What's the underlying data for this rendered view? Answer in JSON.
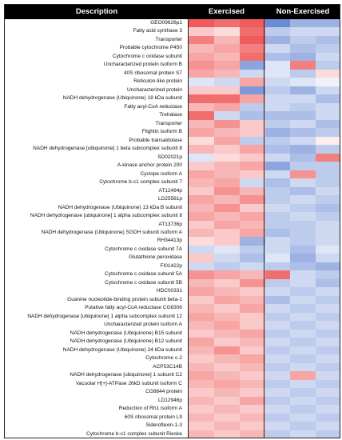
{
  "chart_data": {
    "type": "heatmap",
    "columns": [
      "Description",
      "Exercised",
      "Non-Exercised"
    ],
    "rows": [
      "GEO09626p1",
      "Fatty acid synthase 3",
      "Transporter",
      "Probable cytochrome P450",
      "Cytochrome c oxidase subunit",
      "Uncharacterized protein isoform B",
      "40S ribosomal protein S7",
      "Reticulon-like protein",
      "Uncharacterized protein",
      "NADH dehydrogenase (Ubiquinone) 18 kDa subunit",
      "Fatty acyl-CoA reductase",
      "Trehalase",
      "Transporter",
      "Flightin isoform B",
      "Probable transaldolase",
      "NADH dehydrogenase [ubiquinone] 1 beta subcomplex subunit 8",
      "SD02021p",
      "A-kinase anchor protein 200",
      "Cyclope isoform A",
      "Cytochrome b-c1 complex subunit 7",
      "AT12494p",
      "LD25561p",
      "NADH dehydrogenase (Ubiquinone) 13 kDa B subunit",
      "NADH dehydrogenase [ubiquinone] 1 alpha subcomplex subunit 8",
      "AT13736p",
      "NADH dehydrogenase (Ubiquinone) SGDH subunit isoform A",
      "RH34413p",
      "Cytochrome c oxidase subunit 7A",
      "Glutathione peroxidase",
      "FI01422p",
      "Cytochrome c oxidase subunit 5A",
      "Cytochrome c oxidase subunit 5B",
      "HDC00331",
      "Guanine nucleotide-binding protein subunit beta-1",
      "Putative fatty acyl-CoA reductase CG8306",
      "NADH dehydrogenase [ubiquinone] 1 alpha subcomplex subunit 12",
      "Uncharacterized protein isoform A",
      "NADH dehydrogenase (Ubiquinone) B15 subunit",
      "NADH dehydrogenase (Ubiquinone) B12 subunit",
      "NADH dehydrogenase (Ubiquinone) 24 kDa subunit",
      "Cytochrome c-2",
      "ACP53C14B",
      "NADH dehydrogenase [ubiquinone] 1 subunit C2",
      "Vacuolar H[+]-ATPase 26kD subunit isoform C",
      "CG8844 protein",
      "LD12946p",
      "Reduction of Rh1 isoform A",
      "60S ribosomal protein L9",
      "Sideroflexin-1-3",
      "Cytochrome b-c1 complex subunit Rieske"
    ],
    "n_exercised_cols": 3,
    "n_nonexercised_cols": 3,
    "color_scale": {
      "low": "#5b7fd0",
      "mid": "#ffffff",
      "high": "#ee4a4a"
    },
    "values": [
      [
        0.9,
        0.8,
        0.9,
        -0.9,
        -0.6,
        -0.6
      ],
      [
        0.3,
        0.2,
        0.8,
        -0.4,
        -0.3,
        -0.3
      ],
      [
        0.7,
        0.4,
        0.9,
        -0.6,
        -0.4,
        -0.5
      ],
      [
        0.4,
        0.5,
        0.7,
        -0.3,
        -0.5,
        -0.4
      ],
      [
        0.5,
        0.4,
        0.8,
        -0.5,
        -0.6,
        -0.3
      ],
      [
        0.6,
        0.5,
        -0.7,
        -0.2,
        0.7,
        -0.4
      ],
      [
        0.5,
        0.4,
        -0.3,
        -0.2,
        -0.4,
        0.2
      ],
      [
        -0.2,
        -0.3,
        0.5,
        -0.3,
        -0.2,
        -0.1
      ],
      [
        0.3,
        0.3,
        -0.8,
        -0.4,
        -0.6,
        -0.3
      ],
      [
        0.8,
        0.8,
        0.5,
        -0.3,
        -0.3,
        -0.5
      ],
      [
        0.4,
        0.5,
        -0.4,
        -0.3,
        -0.4,
        -0.3
      ],
      [
        0.8,
        -0.3,
        -0.5,
        -0.5,
        -0.5,
        -0.3
      ],
      [
        0.4,
        0.6,
        0.3,
        -0.4,
        -0.3,
        -0.5
      ],
      [
        0.5,
        0.4,
        0.3,
        -0.6,
        -0.5,
        -0.4
      ],
      [
        0.2,
        0.5,
        -0.4,
        -0.4,
        -0.3,
        0.1
      ],
      [
        0.4,
        0.3,
        0.5,
        -0.5,
        -0.6,
        -0.4
      ],
      [
        -0.2,
        0.2,
        0.3,
        -0.3,
        -0.5,
        0.7
      ],
      [
        0.3,
        0.4,
        0.5,
        -0.7,
        -0.4,
        -0.4
      ],
      [
        0.5,
        0.4,
        0.3,
        -0.3,
        0.6,
        -0.4
      ],
      [
        0.4,
        0.5,
        -0.3,
        -0.5,
        -0.3,
        -0.4
      ],
      [
        0.3,
        0.6,
        0.4,
        -0.4,
        -0.5,
        -0.3
      ],
      [
        0.5,
        0.4,
        0.6,
        -0.4,
        -0.3,
        -0.4
      ],
      [
        0.4,
        0.6,
        0.3,
        -0.3,
        -0.4,
        -0.5
      ],
      [
        0.5,
        0.4,
        0.5,
        -0.4,
        -0.3,
        -0.4
      ],
      [
        0.3,
        0.5,
        0.4,
        -0.4,
        -0.4,
        -0.3
      ],
      [
        0.4,
        0.3,
        0.5,
        -0.5,
        -0.4,
        -0.3
      ],
      [
        0.2,
        0.3,
        -0.6,
        -0.3,
        -0.4,
        -0.3
      ],
      [
        -0.3,
        -0.2,
        -0.4,
        -0.3,
        -0.5,
        -0.2
      ],
      [
        0.3,
        -0.3,
        -0.5,
        -0.2,
        -0.6,
        -0.3
      ],
      [
        -0.3,
        -0.4,
        -0.3,
        -0.4,
        -0.5,
        -0.6
      ],
      [
        0.6,
        0.5,
        0.4,
        0.8,
        -0.3,
        -0.4
      ],
      [
        0.4,
        0.3,
        0.6,
        -0.4,
        -0.3,
        -0.5
      ],
      [
        0.5,
        0.4,
        0.3,
        -0.3,
        -0.4,
        -0.3
      ],
      [
        0.3,
        0.5,
        0.4,
        -0.5,
        -0.3,
        -0.4
      ],
      [
        0.4,
        0.3,
        0.5,
        -0.3,
        -0.4,
        -0.3
      ],
      [
        0.5,
        0.4,
        0.3,
        -0.4,
        -0.3,
        -0.4
      ],
      [
        0.4,
        0.5,
        0.3,
        -0.3,
        -0.4,
        -0.3
      ],
      [
        0.3,
        0.4,
        0.5,
        -0.4,
        -0.3,
        -0.4
      ],
      [
        0.5,
        0.3,
        0.4,
        -0.3,
        -0.4,
        -0.3
      ],
      [
        0.4,
        0.6,
        0.3,
        -0.4,
        -0.3,
        -0.4
      ],
      [
        0.3,
        0.4,
        0.5,
        -0.3,
        -0.4,
        -0.3
      ],
      [
        0.4,
        0.3,
        0.4,
        -0.4,
        -0.3,
        -0.4
      ],
      [
        0.5,
        0.4,
        0.3,
        -0.3,
        0.5,
        -0.3
      ],
      [
        0.4,
        0.5,
        0.4,
        -0.4,
        -0.3,
        -0.4
      ],
      [
        0.3,
        0.4,
        0.3,
        -0.3,
        -0.4,
        -0.3
      ],
      [
        0.4,
        0.3,
        0.5,
        -0.4,
        -0.3,
        -0.4
      ],
      [
        0.3,
        0.4,
        0.3,
        -0.3,
        -0.4,
        -0.3
      ],
      [
        0.4,
        0.3,
        0.4,
        -0.4,
        -0.3,
        -0.4
      ],
      [
        0.3,
        0.4,
        0.3,
        -0.3,
        -0.4,
        -0.3
      ],
      [
        0.4,
        0.3,
        0.4,
        -0.4,
        -0.3,
        -0.4
      ]
    ]
  }
}
